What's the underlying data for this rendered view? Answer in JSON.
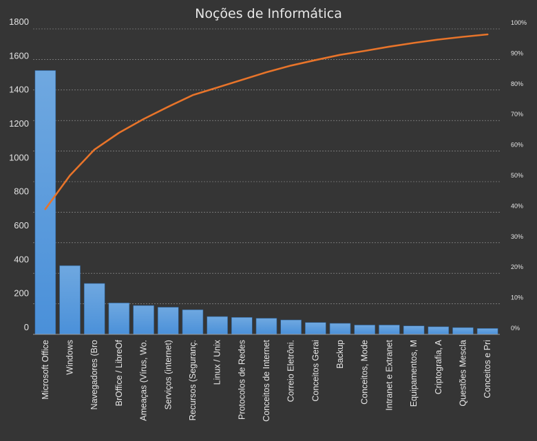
{
  "chart_data": {
    "type": "bar",
    "title": "Noções de Informática",
    "categories": [
      "Microsoft Office",
      "Windows",
      "Navegadores (Bro",
      "BrOffice / LibreOf",
      "Ameaças (Vírus, Wo.",
      "Serviços (internet)",
      "Recursos (Seguranç.",
      "Linux / Unix",
      "Protocolos de Redes",
      "Conceitos de Internet",
      "Correio Eletrôni.",
      "Conceitos Gerai",
      "Backup",
      "Conceitos, Mode",
      "Intranet e Extranet",
      "Equipamentos, M",
      "Criptografia, A",
      "Questões Mescla",
      "Conceitos e Pri"
    ],
    "series": [
      {
        "type": "bar",
        "values": [
          1555,
          405,
          300,
          185,
          170,
          160,
          145,
          105,
          100,
          95,
          85,
          70,
          65,
          55,
          55,
          50,
          45,
          40,
          35
        ]
      },
      {
        "type": "line",
        "axis": "secondary",
        "values": [
          41,
          52,
          60.5,
          66,
          70.5,
          74.5,
          78.3,
          80.8,
          83.3,
          85.8,
          88,
          89.8,
          91.5,
          92.8,
          94.2,
          95.4,
          96.5,
          97.4,
          98.2
        ]
      }
    ],
    "ylim": [
      0,
      1800
    ],
    "y_ticks": [
      "0",
      "200",
      "400",
      "600",
      "800",
      "1000",
      "1200",
      "1400",
      "1600",
      "1800"
    ],
    "y2lim": [
      0,
      100
    ],
    "y2_ticks": [
      "0%",
      "10%",
      "20%",
      "30%",
      "40%",
      "50%",
      "60%",
      "70%",
      "80%",
      "90%",
      "100%"
    ],
    "grid": true,
    "colors": {
      "background": "#353535",
      "bar": "#4a90d9",
      "bar_highlight": "#6fa8e0",
      "line": "#e8742a",
      "grid": "#bdbdbd",
      "text": "#e8e8e8"
    }
  }
}
